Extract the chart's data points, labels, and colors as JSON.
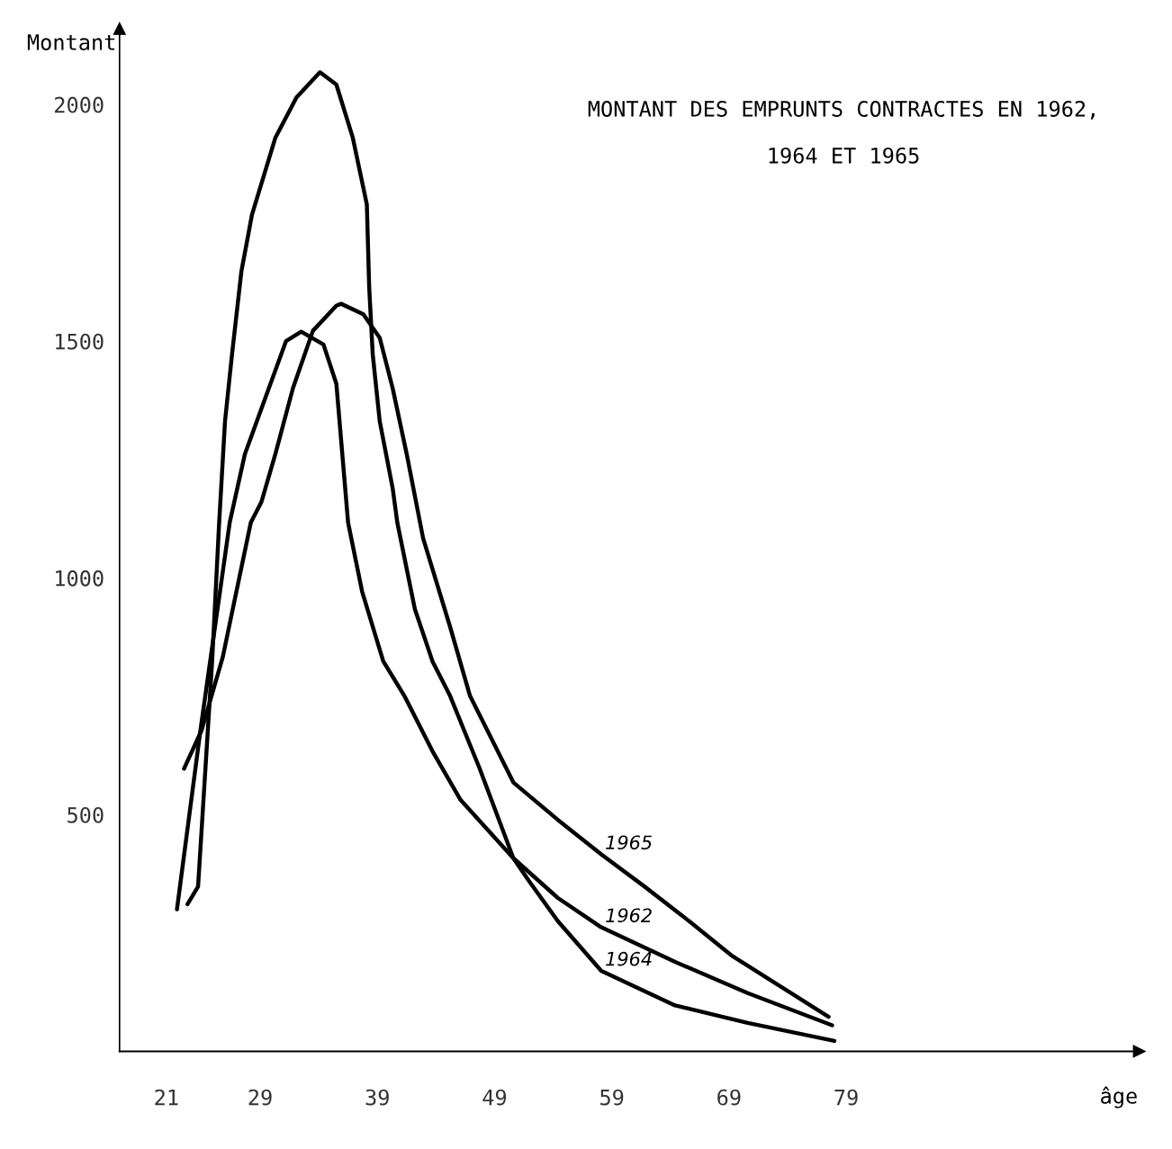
{
  "chart_data": {
    "type": "line",
    "title": "MONTANT DES EMPRUNTS CONTRACTES EN 1962,\n1964 ET 1965",
    "xlabel": "âge",
    "ylabel": "Montant",
    "xlim": [
      17,
      104
    ],
    "ylim": [
      0,
      2160
    ],
    "xticks": [
      21,
      29,
      39,
      49,
      59,
      69,
      79
    ],
    "yticks": [
      500,
      1000,
      1500,
      2000
    ],
    "grid": false,
    "legend": false,
    "marker": "none",
    "line_style": "solid",
    "series": [
      {
        "name": "1962",
        "color": "#000000",
        "x": [
          21.9,
          23.9,
          26.4,
          27.7,
          31.2,
          32.5,
          34.4,
          35.5,
          36.5,
          37.7,
          39.5,
          41.3,
          43.7,
          46.1,
          50.6,
          54.4,
          58.1,
          64.4,
          70.6,
          77.8
        ],
        "values": [
          300,
          678,
          1117,
          1262,
          1500,
          1520,
          1493,
          1410,
          1117,
          971,
          824,
          751,
          634,
          531,
          408,
          324,
          262,
          189,
          123,
          55
        ]
      },
      {
        "name": "1964",
        "color": "#000000",
        "x": [
          22.8,
          23.7,
          24.9,
          25.5,
          26.0,
          26.6,
          27.4,
          28.3,
          30.3,
          32.1,
          34.1,
          35.5,
          36.9,
          38.1,
          38.3,
          38.6,
          39.2,
          40.3,
          40.7,
          42.2,
          43.7,
          45.2,
          47.7,
          50.6,
          51.9,
          54.4,
          58.1,
          64.4,
          70.6,
          78.0
        ],
        "values": [
          311,
          348,
          824,
          1117,
          1331,
          1473,
          1648,
          1767,
          1930,
          2015,
          2068,
          2042,
          1930,
          1789,
          1614,
          1473,
          1331,
          1190,
          1117,
          934,
          824,
          751,
          599,
          408,
          361,
          275,
          170,
          97,
          60,
          22
        ]
      },
      {
        "name": "1965",
        "color": "#000000",
        "x": [
          22.5,
          24.0,
          25.8,
          28.2,
          29.1,
          30.3,
          31.8,
          33.5,
          35.5,
          35.9,
          37.8,
          39.2,
          40.3,
          41.5,
          42.9,
          45.2,
          46.9,
          50.6,
          54.4,
          58.1,
          61.8,
          65.6,
          69.3,
          77.5
        ],
        "values": [
          597,
          678,
          832,
          1117,
          1160,
          1262,
          1401,
          1522,
          1575,
          1579,
          1557,
          1507,
          1401,
          1262,
          1084,
          897,
          751,
          568,
          489,
          416,
          348,
          275,
          201,
          73
        ]
      }
    ]
  }
}
